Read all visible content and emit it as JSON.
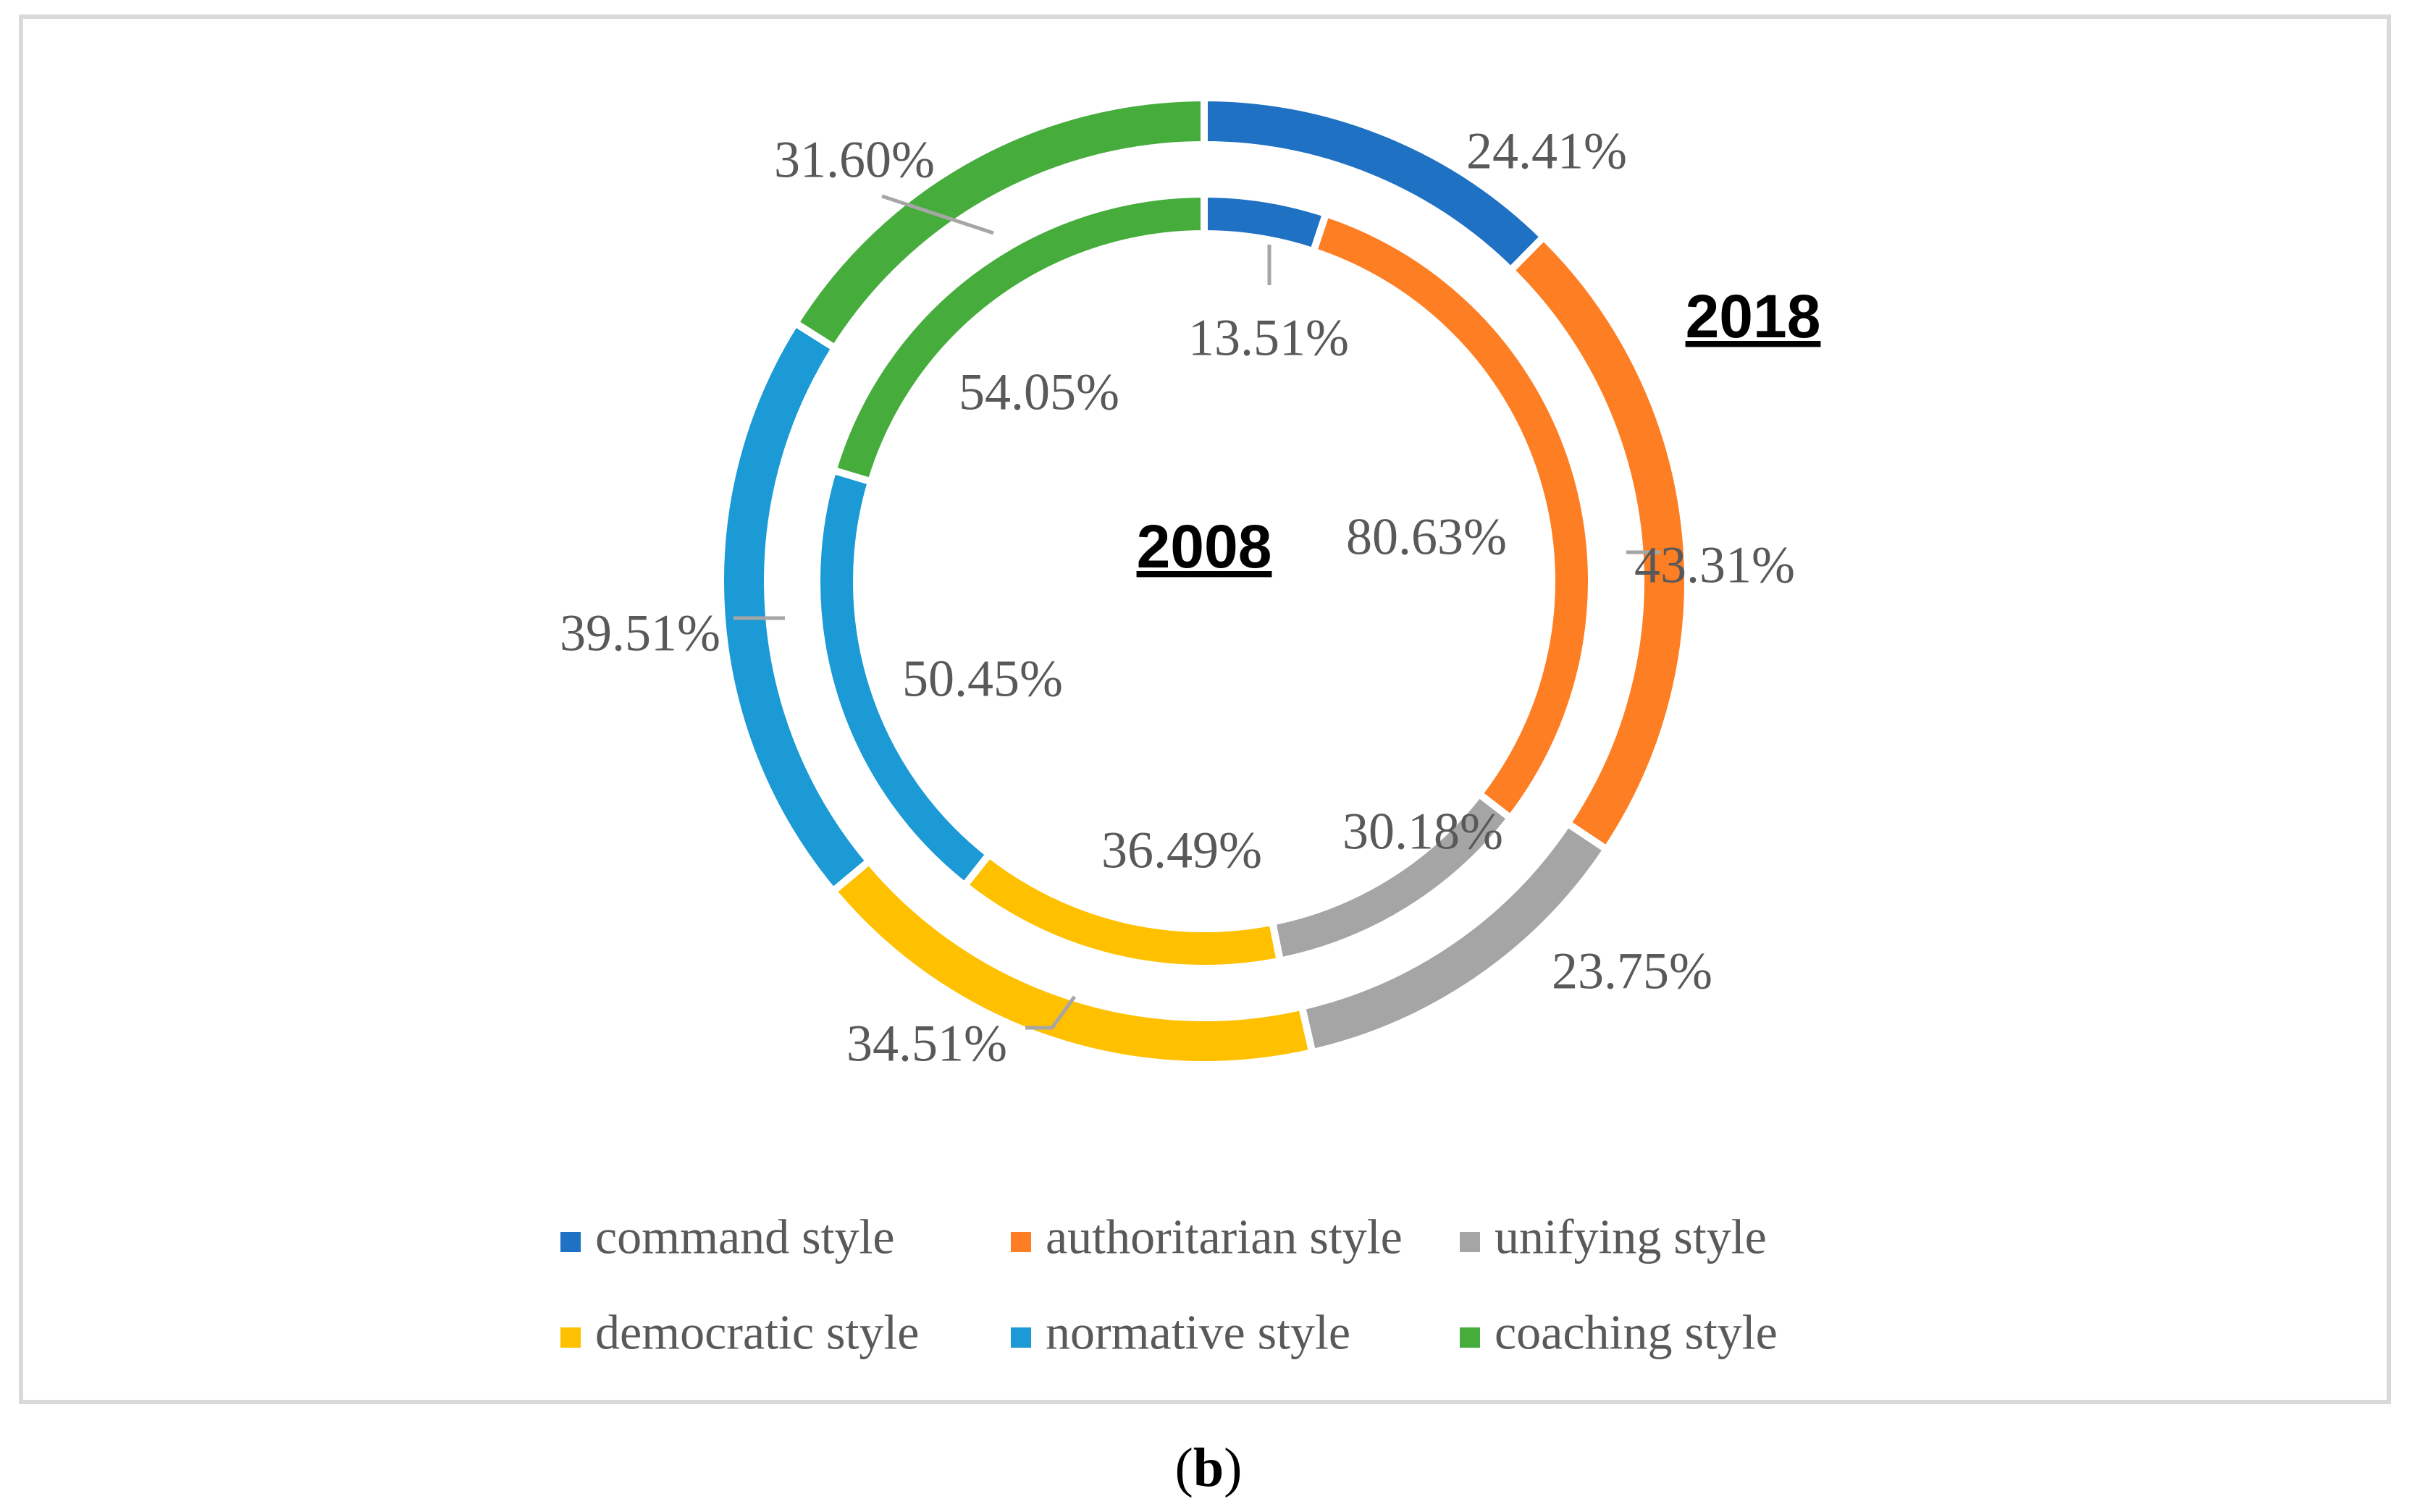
{
  "chart_data": {
    "type": "doughnut",
    "rings": [
      {
        "name": "2008",
        "position": "inner",
        "values": [
          13.51,
          80.63,
          30.18,
          36.49,
          50.45,
          54.05
        ],
        "labels": [
          "13.51%",
          "80.63%",
          "30.18%",
          "36.49%",
          "50.45%",
          "54.05%"
        ]
      },
      {
        "name": "2018",
        "position": "outer",
        "values": [
          24.41,
          43.31,
          23.75,
          34.51,
          39.51,
          31.6
        ],
        "labels": [
          "24.41%",
          "43.31%",
          "23.75%",
          "34.51%",
          "39.51%",
          "31.60%"
        ]
      }
    ],
    "categories": [
      "command style",
      "authoritarian style",
      "unifying style",
      "democratic style",
      "normative style",
      "coaching style"
    ],
    "colors": [
      "#1f71c4",
      "#fd7e23",
      "#a5a5a5",
      "#ffc000",
      "#1b9ad6",
      "#46ad3d"
    ],
    "legend_position": "bottom",
    "caption": {
      "open": "(",
      "letter": "b",
      "close": ")"
    }
  }
}
